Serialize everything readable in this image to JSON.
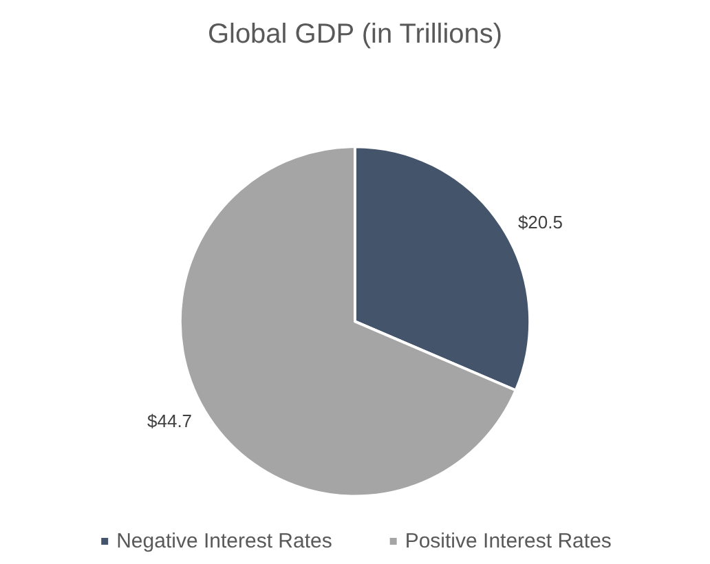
{
  "chart_data": {
    "type": "pie",
    "title": "Global GDP (in Trillions)",
    "categories": [
      "Negative Interest Rates",
      "Positive Interest Rates"
    ],
    "values": [
      20.5,
      44.7
    ],
    "value_labels": [
      "$20.5",
      "$44.7"
    ],
    "colors": [
      "#44546a",
      "#a5a5a5"
    ],
    "legend": "bottom"
  }
}
